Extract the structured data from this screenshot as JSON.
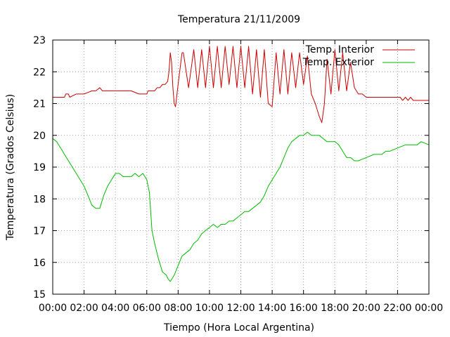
{
  "chart_data": {
    "type": "line",
    "title": "Temperatura 21/11/2009",
    "xlabel": "Tiempo (Hora Local Argentina)",
    "ylabel": "Temperatura (Grados Celsius)",
    "xlim": [
      "00:00",
      "24:00"
    ],
    "ylim": [
      15,
      23
    ],
    "grid": true,
    "legend": "top-right",
    "x_ticks": [
      "00:00",
      "02:00",
      "04:00",
      "06:00",
      "08:00",
      "10:00",
      "12:00",
      "14:00",
      "16:00",
      "18:00",
      "20:00",
      "22:00",
      "00:00"
    ],
    "y_ticks": [
      "15",
      "16",
      "17",
      "18",
      "19",
      "20",
      "21",
      "22",
      "23"
    ],
    "series": [
      {
        "name": "Temp. Interior",
        "color": "#cc0000",
        "x": [
          "00:00",
          "00:45",
          "00:50",
          "01:00",
          "01:05",
          "01:30",
          "02:00",
          "02:30",
          "02:45",
          "03:00",
          "03:10",
          "04:00",
          "05:00",
          "05:30",
          "06:00",
          "06:05",
          "06:30",
          "06:40",
          "06:50",
          "07:00",
          "07:10",
          "07:20",
          "07:25",
          "07:30",
          "07:35",
          "07:40",
          "07:45",
          "07:50",
          "08:00",
          "08:15",
          "08:20",
          "08:40",
          "09:00",
          "09:15",
          "09:30",
          "09:45",
          "10:00",
          "10:15",
          "10:30",
          "10:45",
          "11:00",
          "11:15",
          "11:30",
          "11:45",
          "12:00",
          "12:15",
          "12:30",
          "12:45",
          "13:00",
          "13:15",
          "13:30",
          "13:45",
          "14:00",
          "14:15",
          "14:30",
          "14:45",
          "15:00",
          "15:15",
          "15:30",
          "15:45",
          "16:00",
          "16:15",
          "16:30",
          "16:45",
          "17:00",
          "17:10",
          "17:20",
          "17:30",
          "17:45",
          "18:00",
          "18:15",
          "18:30",
          "18:45",
          "19:00",
          "19:15",
          "19:30",
          "19:45",
          "20:00",
          "20:30",
          "21:00",
          "21:30",
          "22:00",
          "22:10",
          "22:20",
          "22:30",
          "22:40",
          "22:50",
          "23:00",
          "23:30",
          "24:00"
        ],
        "y": [
          21.2,
          21.2,
          21.3,
          21.3,
          21.2,
          21.3,
          21.3,
          21.4,
          21.4,
          21.5,
          21.4,
          21.4,
          21.4,
          21.3,
          21.3,
          21.4,
          21.4,
          21.5,
          21.5,
          21.6,
          21.6,
          21.7,
          22.0,
          22.6,
          22.3,
          21.5,
          21.0,
          20.9,
          21.6,
          22.6,
          22.6,
          21.5,
          22.7,
          21.5,
          22.7,
          21.5,
          22.8,
          21.5,
          22.8,
          21.5,
          22.8,
          21.6,
          22.8,
          21.5,
          22.8,
          21.5,
          22.8,
          21.3,
          22.7,
          21.2,
          22.7,
          21.0,
          20.9,
          22.6,
          21.3,
          22.7,
          21.3,
          22.6,
          21.5,
          22.6,
          21.6,
          22.5,
          21.3,
          21.0,
          20.6,
          20.4,
          21.0,
          22.4,
          21.3,
          22.7,
          21.4,
          22.6,
          21.4,
          22.3,
          21.5,
          21.3,
          21.3,
          21.2,
          21.2,
          21.2,
          21.2,
          21.2,
          21.2,
          21.1,
          21.2,
          21.1,
          21.2,
          21.1,
          21.1,
          21.1
        ]
      },
      {
        "name": "Temp. Exterior",
        "color": "#00bb00",
        "x": [
          "00:00",
          "00:15",
          "00:30",
          "00:45",
          "01:00",
          "01:15",
          "01:30",
          "01:45",
          "02:00",
          "02:15",
          "02:30",
          "02:45",
          "03:00",
          "03:15",
          "03:30",
          "03:45",
          "04:00",
          "04:15",
          "04:30",
          "05:00",
          "05:15",
          "05:30",
          "05:45",
          "06:00",
          "06:10",
          "06:15",
          "06:20",
          "06:30",
          "06:45",
          "07:00",
          "07:15",
          "07:20",
          "07:30",
          "07:45",
          "08:00",
          "08:15",
          "08:30",
          "08:45",
          "09:00",
          "09:15",
          "09:30",
          "09:45",
          "10:00",
          "10:15",
          "10:30",
          "10:45",
          "11:00",
          "11:15",
          "11:30",
          "11:45",
          "12:00",
          "12:15",
          "12:30",
          "12:45",
          "13:00",
          "13:15",
          "13:30",
          "13:45",
          "14:00",
          "14:15",
          "14:30",
          "14:45",
          "15:00",
          "15:15",
          "15:30",
          "15:45",
          "16:00",
          "16:15",
          "16:30",
          "17:00",
          "17:30",
          "18:00",
          "18:15",
          "18:30",
          "18:45",
          "19:00",
          "19:15",
          "19:30",
          "20:00",
          "20:30",
          "21:00",
          "21:15",
          "21:30",
          "22:00",
          "22:30",
          "23:00",
          "23:15",
          "23:30",
          "24:00"
        ],
        "y": [
          19.9,
          19.8,
          19.6,
          19.4,
          19.2,
          19.0,
          18.8,
          18.6,
          18.4,
          18.1,
          17.8,
          17.7,
          17.7,
          18.1,
          18.4,
          18.6,
          18.8,
          18.8,
          18.7,
          18.7,
          18.8,
          18.7,
          18.8,
          18.6,
          18.2,
          17.6,
          17.0,
          16.6,
          16.1,
          15.7,
          15.6,
          15.5,
          15.4,
          15.6,
          15.9,
          16.2,
          16.3,
          16.4,
          16.6,
          16.7,
          16.9,
          17.0,
          17.1,
          17.2,
          17.1,
          17.2,
          17.2,
          17.3,
          17.3,
          17.4,
          17.5,
          17.6,
          17.6,
          17.7,
          17.8,
          17.9,
          18.1,
          18.4,
          18.6,
          18.8,
          19.0,
          19.3,
          19.6,
          19.8,
          19.9,
          20.0,
          20.0,
          20.1,
          20.0,
          20.0,
          19.8,
          19.8,
          19.7,
          19.5,
          19.3,
          19.3,
          19.2,
          19.2,
          19.3,
          19.4,
          19.4,
          19.5,
          19.5,
          19.6,
          19.7,
          19.7,
          19.7,
          19.8,
          19.7
        ]
      }
    ]
  }
}
